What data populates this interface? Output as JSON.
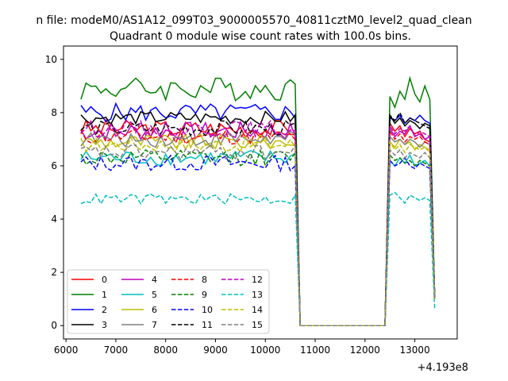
{
  "figure": {
    "suptitle": "n file: modeM0/AS1A12_099T03_9000005570_40811cztM0_level2_quad_clean",
    "offset_label": "+4.193e8"
  },
  "chart_data": {
    "type": "line",
    "title": "Quadrant 0 module wise count rates with 100.0s bins.",
    "xlabel": "",
    "ylabel": "",
    "x_offset": 419300000,
    "xlim": [
      5950,
      13850
    ],
    "ylim": [
      -0.5,
      10.5
    ],
    "xticks": [
      6000,
      7000,
      8000,
      9000,
      10000,
      11000,
      12000,
      13000
    ],
    "xtick_labels": [
      "6000",
      "7000",
      "8000",
      "9000",
      "10000",
      "11000",
      "12000",
      "13000"
    ],
    "yticks": [
      0,
      2,
      4,
      6,
      8,
      10
    ],
    "ytick_labels": [
      "0",
      "2",
      "4",
      "6",
      "8",
      "10"
    ],
    "grid": false,
    "legend_location": "lower-left",
    "legend_columns": 4,
    "segments": [
      {
        "x_start": 6300,
        "x_end": 10700,
        "step": 100
      },
      {
        "x_start": 10700,
        "x_end": 12400,
        "step": 100,
        "zero": true
      },
      {
        "x_start": 12500,
        "x_end": 13500,
        "step": 100
      }
    ],
    "series": [
      {
        "name": "0",
        "color": "#ff0000",
        "dash": "solid",
        "level": 7.4,
        "noise": 0.35,
        "values2": [
          7.6,
          7.3,
          7.5,
          7.1,
          7.4,
          7.2,
          7.3,
          7.0,
          6.9,
          1.0
        ]
      },
      {
        "name": "1",
        "color": "#008000",
        "dash": "solid",
        "level": 8.9,
        "noise": 0.45,
        "values2": [
          8.6,
          8.2,
          8.8,
          8.5,
          9.3,
          8.7,
          8.4,
          9.0,
          8.5,
          1.0
        ]
      },
      {
        "name": "2",
        "color": "#0000ff",
        "dash": "solid",
        "level": 8.0,
        "noise": 0.35,
        "values2": [
          7.8,
          7.7,
          7.9,
          7.6,
          7.8,
          7.7,
          7.9,
          7.7,
          7.6,
          1.0
        ]
      },
      {
        "name": "3",
        "color": "#000000",
        "dash": "solid",
        "level": 7.8,
        "noise": 0.25,
        "values2": [
          7.9,
          7.6,
          7.8,
          7.5,
          7.7,
          7.6,
          7.4,
          7.6,
          7.5,
          1.0
        ]
      },
      {
        "name": "4",
        "color": "#bf00bf",
        "dash": "solid",
        "level": 7.3,
        "noise": 0.35,
        "values2": [
          7.4,
          7.1,
          7.3,
          7.2,
          7.5,
          7.1,
          7.2,
          7.0,
          7.1,
          1.0
        ]
      },
      {
        "name": "5",
        "color": "#00bfbf",
        "dash": "solid",
        "level": 6.3,
        "noise": 0.3,
        "values2": [
          6.2,
          6.0,
          6.3,
          6.1,
          6.4,
          6.0,
          6.1,
          6.2,
          6.0,
          1.0
        ]
      },
      {
        "name": "6",
        "color": "#bfbf00",
        "dash": "solid",
        "level": 6.9,
        "noise": 0.3,
        "values2": [
          6.9,
          6.7,
          7.0,
          6.8,
          6.9,
          6.6,
          6.8,
          6.7,
          6.6,
          1.0
        ]
      },
      {
        "name": "7",
        "color": "#808080",
        "dash": "solid",
        "level": 7.0,
        "noise": 0.3,
        "values2": [
          7.1,
          6.9,
          7.0,
          6.8,
          7.0,
          6.9,
          6.7,
          6.9,
          6.8,
          1.0
        ]
      },
      {
        "name": "8",
        "color": "#ff0000",
        "dash": "dashed",
        "level": 7.1,
        "noise": 0.3,
        "values2": [
          7.3,
          7.0,
          7.2,
          6.9,
          7.1,
          7.0,
          7.1,
          6.9,
          6.8,
          1.0
        ]
      },
      {
        "name": "9",
        "color": "#008000",
        "dash": "dashed",
        "level": 6.3,
        "noise": 0.3,
        "values2": [
          6.4,
          6.2,
          6.3,
          6.1,
          6.2,
          6.0,
          6.2,
          6.1,
          6.0,
          1.0
        ]
      },
      {
        "name": "10",
        "color": "#0000ff",
        "dash": "dashed",
        "level": 6.1,
        "noise": 0.3,
        "values2": [
          6.2,
          6.0,
          6.1,
          6.3,
          6.0,
          5.9,
          6.1,
          6.0,
          5.9,
          1.0
        ]
      },
      {
        "name": "11",
        "color": "#000000",
        "dash": "dashed",
        "level": 7.4,
        "noise": 0.3,
        "values2": [
          7.9,
          7.7,
          8.0,
          7.6,
          7.8,
          7.7,
          7.6,
          7.5,
          7.4,
          1.0
        ]
      },
      {
        "name": "12",
        "color": "#bf00bf",
        "dash": "dashed",
        "level": 7.4,
        "noise": 0.3,
        "values2": [
          7.5,
          7.2,
          7.4,
          7.3,
          7.5,
          7.1,
          7.3,
          7.2,
          7.1,
          1.0
        ]
      },
      {
        "name": "13",
        "color": "#00bfbf",
        "dash": "dashed",
        "level": 4.75,
        "noise": 0.2,
        "values2": [
          4.9,
          5.0,
          4.8,
          4.6,
          4.9,
          4.8,
          4.7,
          4.8,
          4.7,
          0.6
        ]
      },
      {
        "name": "14",
        "color": "#bfbf00",
        "dash": "dashed",
        "level": 6.8,
        "noise": 0.3,
        "values2": [
          6.9,
          6.6,
          6.8,
          6.5,
          6.8,
          6.7,
          6.6,
          6.7,
          6.5,
          1.0
        ]
      },
      {
        "name": "15",
        "color": "#808080",
        "dash": "dashed",
        "level": 6.5,
        "noise": 0.3,
        "values2": [
          6.6,
          6.4,
          6.6,
          6.3,
          6.5,
          6.4,
          6.3,
          6.5,
          6.3,
          1.0
        ]
      }
    ]
  }
}
